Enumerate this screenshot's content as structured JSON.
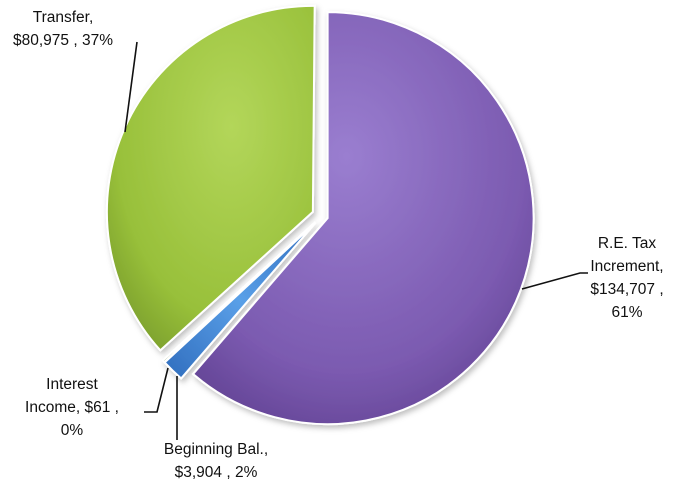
{
  "chart_data": {
    "type": "pie",
    "title": "",
    "slices": [
      {
        "name": "R.E. Tax Increment",
        "value": 134707,
        "label_lines": [
          "R.E. Tax",
          "Increment,",
          "$134,707 ,",
          "61%"
        ],
        "color": "#7d5cb2"
      },
      {
        "name": "Beginning Bal.",
        "value": 3904,
        "label_lines": [
          "Beginning Bal.,",
          "$3,904 , 2%"
        ],
        "color": "#3a7fd0"
      },
      {
        "name": "Interest Income",
        "value": 61,
        "label_lines": [
          "Interest",
          "Income,  $61 ,",
          "0%"
        ],
        "color": "#5e8a2a"
      },
      {
        "name": "Transfer",
        "value": 80975,
        "label_lines": [
          "Transfer,",
          "$80,975 , 37%"
        ],
        "color": "#9cc23a"
      }
    ]
  }
}
